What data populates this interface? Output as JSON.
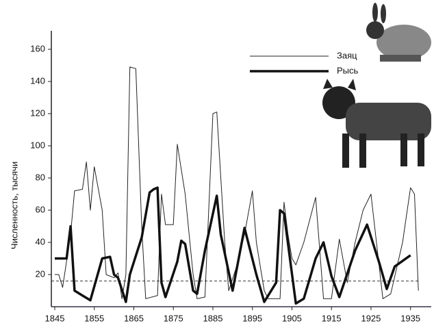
{
  "chart_data": {
    "type": "line",
    "y_label": "Численность, тысячи",
    "xlim": [
      1845,
      1938
    ],
    "ylim": [
      0,
      170
    ],
    "xticks": [
      1845,
      1855,
      1865,
      1875,
      1885,
      1895,
      1905,
      1915,
      1925,
      1935
    ],
    "yticks": [
      20,
      40,
      60,
      80,
      100,
      120,
      140,
      160
    ],
    "reference_line": 16,
    "legend": "upper right",
    "series": [
      {
        "name": "Заяц",
        "color": "#222222",
        "width": 1,
        "x": [
          1845,
          1846,
          1847,
          1849,
          1850,
          1852,
          1853,
          1854,
          1855,
          1857,
          1858,
          1860,
          1861,
          1862,
          1863,
          1864,
          1865.5,
          1867,
          1868,
          1871,
          1872,
          1873,
          1875,
          1876,
          1878,
          1880,
          1881,
          1883,
          1885,
          1886,
          1888,
          1889,
          1891,
          1893,
          1895,
          1896,
          1898,
          1899,
          1902,
          1903,
          1904,
          1905,
          1906,
          1908,
          1911,
          1913,
          1915,
          1917,
          1919,
          1921,
          1923,
          1925,
          1928,
          1930,
          1933,
          1935,
          1936,
          1937
        ],
        "values": [
          20,
          20,
          12,
          45,
          72,
          73,
          90,
          60,
          87,
          60,
          20,
          18,
          21,
          5,
          20,
          149,
          148,
          50,
          5,
          7,
          70,
          51,
          51,
          101,
          70,
          20,
          5,
          6,
          120,
          121,
          40,
          10,
          25,
          45,
          72,
          40,
          10,
          5,
          5,
          65,
          45,
          30,
          26,
          40,
          68,
          5,
          5,
          42,
          15,
          40,
          60,
          70,
          5,
          8,
          40,
          74,
          70,
          10
        ]
      },
      {
        "name": "Рысь",
        "color": "#111111",
        "width": 3.5,
        "x": [
          1845,
          1848,
          1849,
          1850,
          1852,
          1854,
          1857,
          1859,
          1860,
          1861,
          1863,
          1864,
          1867,
          1869,
          1870,
          1871,
          1872,
          1873,
          1876,
          1877,
          1878,
          1880,
          1881,
          1883,
          1886,
          1887,
          1890,
          1893,
          1896,
          1898,
          1901,
          1902,
          1903,
          1906,
          1908,
          1911,
          1913,
          1915,
          1917,
          1921,
          1924,
          1927,
          1929,
          1931,
          1935
        ],
        "values": [
          30,
          30,
          50,
          10,
          7,
          4,
          30,
          31,
          20,
          18,
          3,
          20,
          43,
          71,
          73,
          74,
          15,
          6,
          28,
          41,
          39,
          10,
          8,
          35,
          69,
          45,
          10,
          49,
          20,
          3,
          15,
          60,
          58,
          2,
          5,
          30,
          40,
          19,
          6,
          35,
          51,
          28,
          11,
          25,
          32
        ]
      }
    ]
  }
}
